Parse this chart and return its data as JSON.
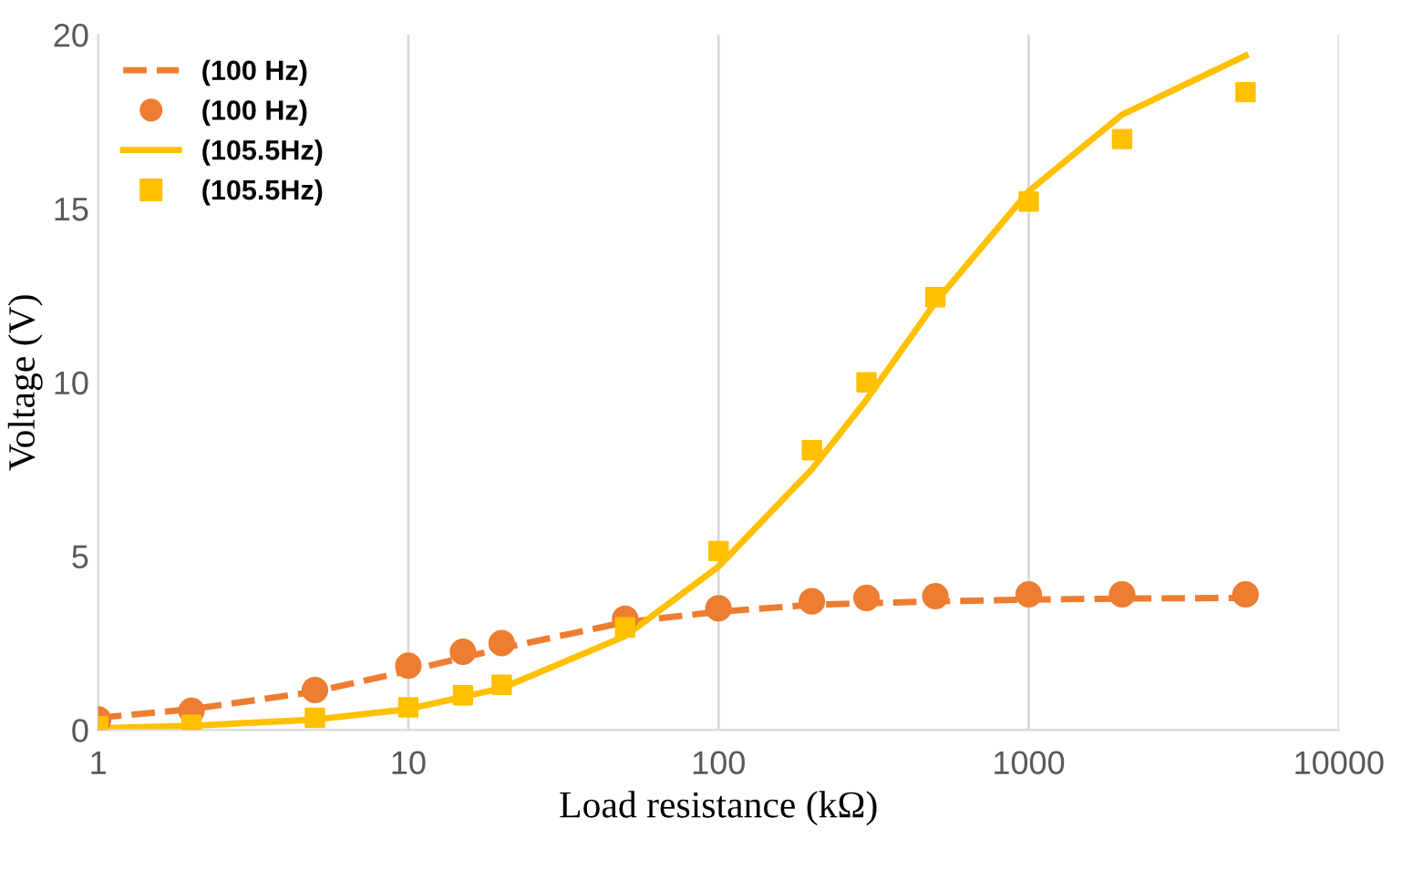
{
  "chart_data": {
    "type": "line",
    "xlabel": "Load resistance (kΩ)",
    "ylabel": "Voltage (V)",
    "log": "x",
    "xlim": [
      1,
      10000
    ],
    "xticks": [
      1,
      10,
      100,
      1000,
      10000
    ],
    "ylim": [
      0,
      20
    ],
    "yticks": [
      0,
      5,
      10,
      15,
      20
    ],
    "grid": "x",
    "legend": "top left",
    "series": [
      {
        "name": "(100 Hz)",
        "line_style": "dashed",
        "marker": "none",
        "color": "#ed7d31",
        "x": [
          1,
          2,
          5,
          10,
          20,
          50,
          100,
          200,
          500,
          1000,
          2000,
          5000
        ],
        "values": [
          0.35,
          0.6,
          1.1,
          1.7,
          2.35,
          3.1,
          3.4,
          3.6,
          3.7,
          3.75,
          3.78,
          3.8
        ]
      },
      {
        "name": "(100 Hz)",
        "type": "scatter",
        "marker": "circle",
        "color": "#ed7d31",
        "x": [
          1,
          2,
          5,
          10,
          15,
          20,
          50,
          100,
          200,
          300,
          500,
          1000,
          2000,
          5000
        ],
        "values": [
          0.3,
          0.55,
          1.15,
          1.85,
          2.25,
          2.5,
          3.2,
          3.5,
          3.7,
          3.8,
          3.85,
          3.9,
          3.9,
          3.9
        ]
      },
      {
        "name": "(105.5Hz)",
        "line_style": "solid",
        "marker": "none",
        "color": "#ffc000",
        "x": [
          1,
          2,
          5,
          10,
          20,
          50,
          100,
          200,
          300,
          500,
          1000,
          2000,
          5000
        ],
        "values": [
          0.05,
          0.12,
          0.3,
          0.6,
          1.2,
          2.7,
          4.7,
          7.5,
          9.5,
          12.3,
          15.5,
          17.7,
          19.4
        ]
      },
      {
        "name": "(105.5Hz)",
        "type": "scatter",
        "marker": "square",
        "color": "#ffc000",
        "x": [
          1,
          2,
          5,
          10,
          15,
          20,
          50,
          100,
          200,
          300,
          500,
          1000,
          2000,
          5000
        ],
        "values": [
          0.1,
          0.15,
          0.35,
          0.65,
          1.0,
          1.3,
          2.95,
          5.15,
          8.05,
          10.0,
          12.45,
          15.2,
          17.0,
          18.35
        ]
      }
    ]
  }
}
